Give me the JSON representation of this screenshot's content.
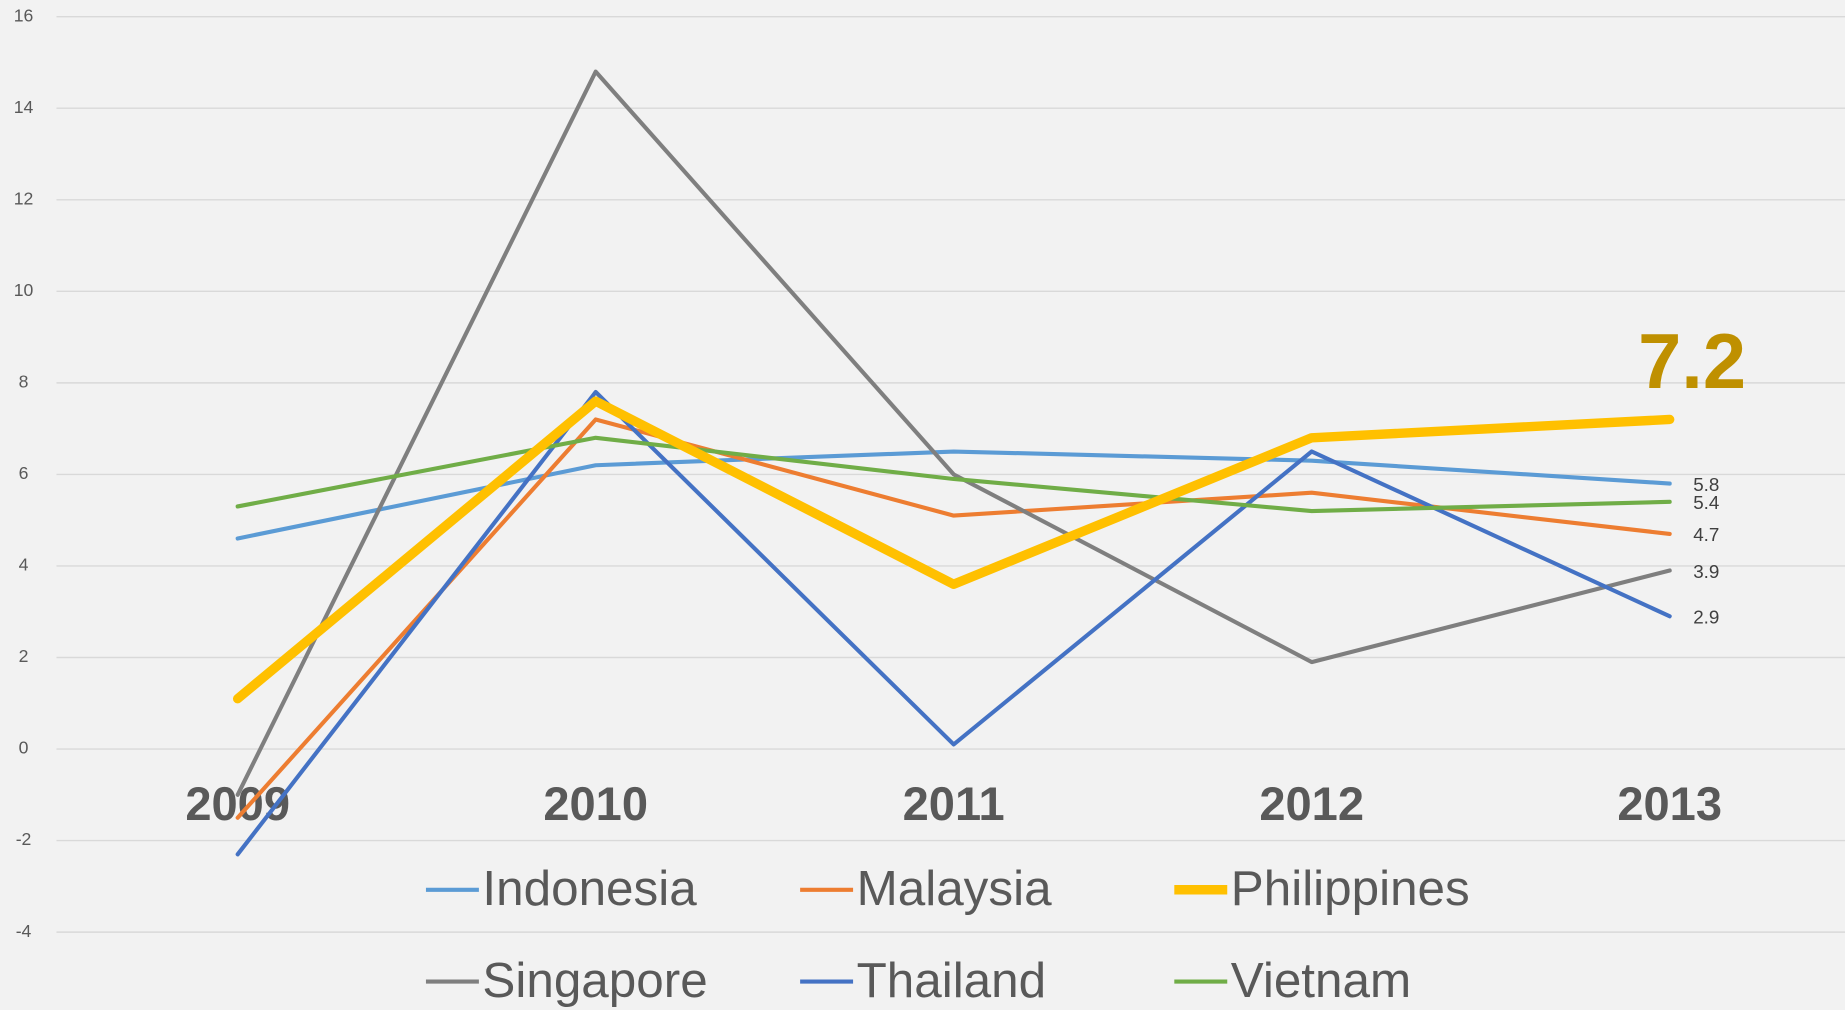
{
  "chart_data": {
    "type": "line",
    "categories": [
      "2009",
      "2010",
      "2011",
      "2012",
      "2013"
    ],
    "ylim": [
      -4,
      16
    ],
    "yticks": [
      -4,
      -2,
      0,
      2,
      4,
      6,
      8,
      10,
      12,
      14,
      16
    ],
    "grid": true,
    "highlight_color": "#bf9000",
    "series": [
      {
        "name": "Indonesia",
        "color": "#5b9bd5",
        "values": [
          4.6,
          6.2,
          6.5,
          6.3,
          5.8
        ]
      },
      {
        "name": "Malaysia",
        "color": "#ed7d31",
        "values": [
          -1.5,
          7.2,
          5.1,
          5.6,
          4.7
        ]
      },
      {
        "name": "Philippines",
        "color": "#ffc000",
        "highlight": true,
        "values": [
          1.1,
          7.6,
          3.6,
          6.8,
          7.2
        ]
      },
      {
        "name": "Singapore",
        "color": "#7f7f7f",
        "values": [
          -1.0,
          14.8,
          6.0,
          1.9,
          3.9
        ]
      },
      {
        "name": "Thailand",
        "color": "#4472c4",
        "values": [
          -2.3,
          7.8,
          0.1,
          6.5,
          2.9
        ]
      },
      {
        "name": "Vietnam",
        "color": "#70ad47",
        "values": [
          5.3,
          6.8,
          5.9,
          5.2,
          5.4
        ]
      }
    ]
  }
}
